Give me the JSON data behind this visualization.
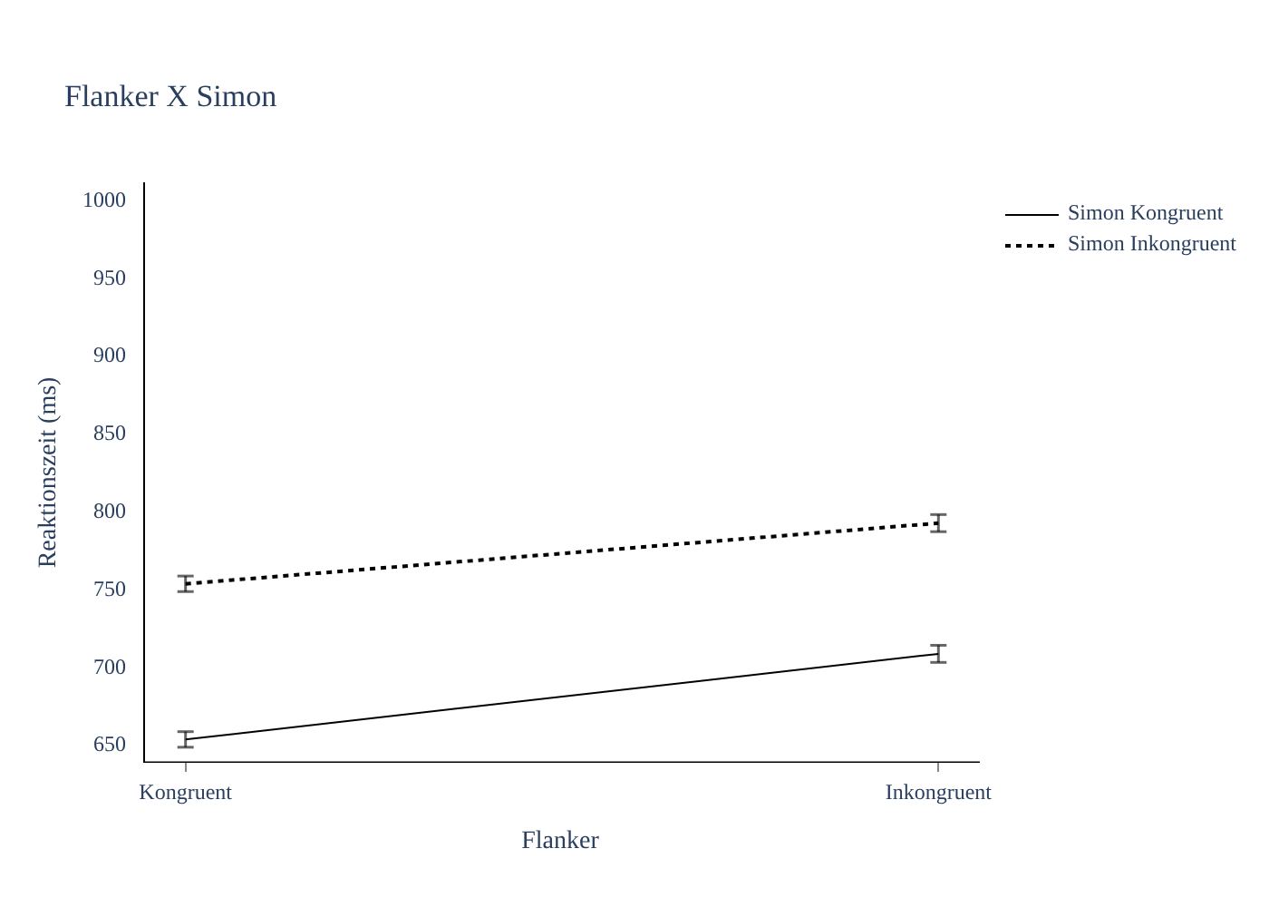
{
  "chart_data": {
    "type": "line",
    "title": "Flanker X Simon",
    "xlabel": "Flanker",
    "ylabel": "Reaktionszeit (ms)",
    "categories": [
      "Kongruent",
      "Inkongruent"
    ],
    "series": [
      {
        "name": "Simon Kongruent",
        "color": "#000000",
        "values": [
          653,
          708
        ],
        "errors": [
          5,
          5.5
        ],
        "line_style": "solid"
      },
      {
        "name": "Simon Inkongruent",
        "color": "#000000",
        "values": [
          753,
          792
        ],
        "errors": [
          5,
          5.5
        ],
        "line_style": "dotted"
      }
    ],
    "ylim": [
      638,
      1011
    ],
    "yticks": [
      650,
      700,
      750,
      800,
      850,
      900,
      950,
      1000
    ],
    "grid": false,
    "legend": "top right"
  }
}
